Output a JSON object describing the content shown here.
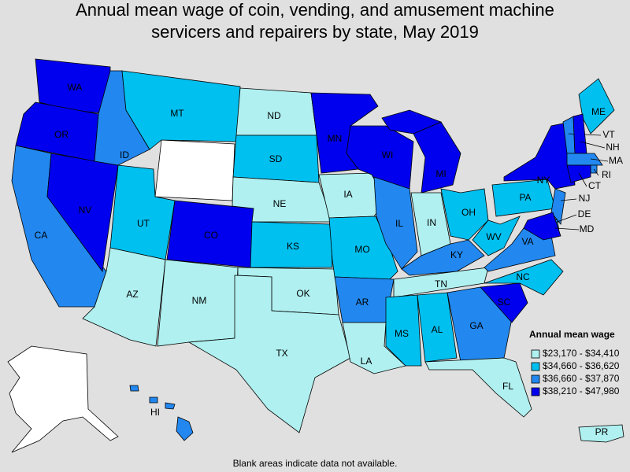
{
  "title_lines": [
    "Annual mean wage of coin, vending, and amusement machine",
    "servicers and repairers by state, May 2019"
  ],
  "legend": {
    "title": "Annual mean wage",
    "items": [
      {
        "label": "$23,170 - $34,410",
        "color": "#b0f0f0"
      },
      {
        "label": "$34,660 - $36,620",
        "color": "#00c0f0"
      },
      {
        "label": "$36,660 - $37,870",
        "color": "#2288f0"
      },
      {
        "label": "$38,210 - $47,980",
        "color": "#0000ee"
      }
    ]
  },
  "states": [
    {
      "label": "WA",
      "color": "#0000ee"
    },
    {
      "label": "OR",
      "color": "#0000ee"
    },
    {
      "label": "CA",
      "color": "#2288f0"
    },
    {
      "label": "NV",
      "color": "#0000ee"
    },
    {
      "label": "ID",
      "color": "#2288f0"
    },
    {
      "label": "MT",
      "color": "#00c0f0"
    },
    {
      "label": "UT",
      "color": "#00c0f0"
    },
    {
      "label": "CO",
      "color": "#0000ee"
    },
    {
      "label": "AZ",
      "color": "#b0f0f0"
    },
    {
      "label": "NM",
      "color": "#b0f0f0"
    },
    {
      "label": "ND",
      "color": "#b0f0f0"
    },
    {
      "label": "SD",
      "color": "#00c0f0"
    },
    {
      "label": "NE",
      "color": "#b0f0f0"
    },
    {
      "label": "KS",
      "color": "#00c0f0"
    },
    {
      "label": "OK",
      "color": "#b0f0f0"
    },
    {
      "label": "TX",
      "color": "#b0f0f0"
    },
    {
      "label": "MN",
      "color": "#0000ee"
    },
    {
      "label": "IA",
      "color": "#b0f0f0"
    },
    {
      "label": "MO",
      "color": "#00c0f0"
    },
    {
      "label": "AR",
      "color": "#2288f0"
    },
    {
      "label": "LA",
      "color": "#b0f0f0"
    },
    {
      "label": "WI",
      "color": "#0000ee"
    },
    {
      "label": "IL",
      "color": "#2288f0"
    },
    {
      "label": "MI",
      "color": "#0000ee"
    },
    {
      "label": "IN",
      "color": "#b0f0f0"
    },
    {
      "label": "OH",
      "color": "#00c0f0"
    },
    {
      "label": "KY",
      "color": "#2288f0"
    },
    {
      "label": "TN",
      "color": "#b0f0f0"
    },
    {
      "label": "MS",
      "color": "#00c0f0"
    },
    {
      "label": "AL",
      "color": "#00c0f0"
    },
    {
      "label": "GA",
      "color": "#2288f0"
    },
    {
      "label": "FL",
      "color": "#b0f0f0"
    },
    {
      "label": "SC",
      "color": "#0000ee"
    },
    {
      "label": "NC",
      "color": "#00c0f0"
    },
    {
      "label": "VA",
      "color": "#2288f0"
    },
    {
      "label": "WV",
      "color": "#00c0f0"
    },
    {
      "label": "PA",
      "color": "#00c0f0"
    },
    {
      "label": "NY",
      "color": "#0000ee"
    },
    {
      "label": "ME",
      "color": "#00c0f0"
    },
    {
      "label": "VT",
      "color": "#2288f0"
    },
    {
      "label": "NH",
      "color": "#0000ee"
    },
    {
      "label": "MA",
      "color": "#2288f0"
    },
    {
      "label": "RI",
      "color": "#2288f0"
    },
    {
      "label": "CT",
      "color": "#0000ee"
    },
    {
      "label": "NJ",
      "color": "#2288f0"
    },
    {
      "label": "DE",
      "color": "#2288f0"
    },
    {
      "label": "MD",
      "color": "#0000ee"
    },
    {
      "label": "HI",
      "color": "#2288f0"
    },
    {
      "label": "PR",
      "color": "#b0f0f0"
    }
  ],
  "note": "Blank areas indicate data not available."
}
